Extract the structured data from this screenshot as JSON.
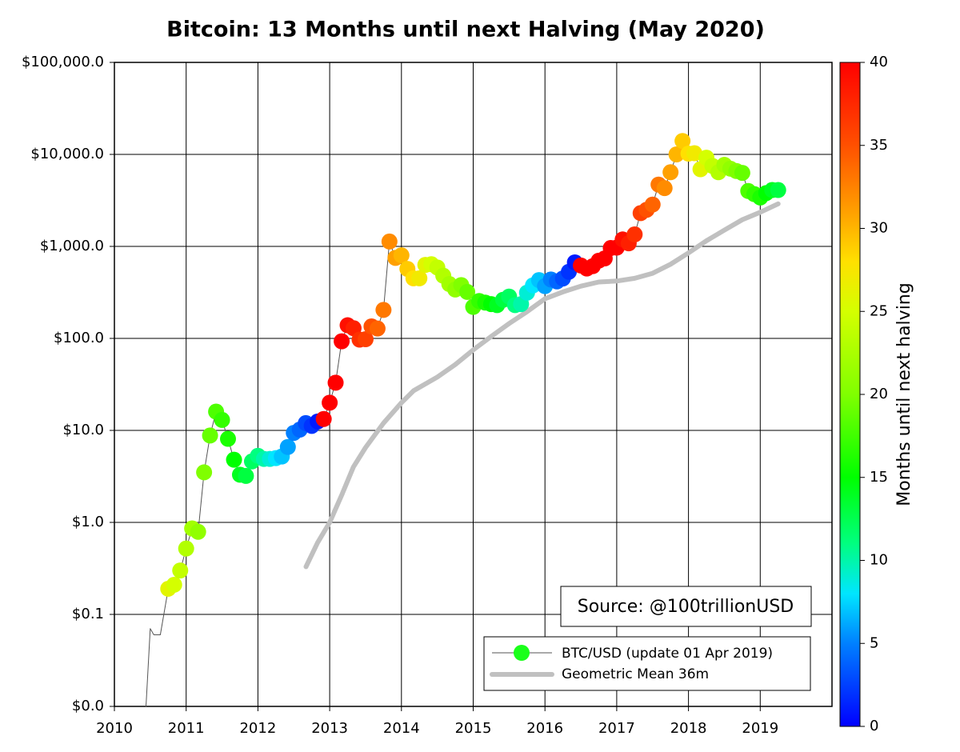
{
  "chart_data": {
    "type": "scatter",
    "title": "Bitcoin: 13 Months until next Halving (May 2020)",
    "annotation": "Source: @100trillionUSD",
    "xlim": [
      2010,
      2020
    ],
    "xticks": [
      2010,
      2011,
      2012,
      2013,
      2014,
      2015,
      2016,
      2017,
      2018,
      2019
    ],
    "ylim": [
      0.01,
      100000
    ],
    "yscale": "log",
    "yticks": [
      {
        "value": 0.01,
        "label": "$0.0"
      },
      {
        "value": 0.1,
        "label": "$0.1"
      },
      {
        "value": 1,
        "label": "$1.0"
      },
      {
        "value": 10,
        "label": "$10.0"
      },
      {
        "value": 100,
        "label": "$100.0"
      },
      {
        "value": 1000,
        "label": "$1,000.0"
      },
      {
        "value": 10000,
        "label": "$10,000.0"
      },
      {
        "value": 100000,
        "label": "$100,000.0"
      }
    ],
    "grid": true,
    "legend": "lower right",
    "colorbar": {
      "label": "Months until next halving",
      "lim": [
        0,
        40
      ],
      "ticks": [
        0,
        5,
        10,
        15,
        20,
        25,
        30,
        35,
        40
      ]
    },
    "series": [
      {
        "name": "BTC/USD (update 01 Apr 2019)",
        "color": "#1aff1a",
        "line_color": "#555555",
        "x": [
          2010.44,
          2010.5,
          2010.55,
          2010.64,
          2010.75,
          2010.833,
          2010.917,
          2011.0,
          2011.083,
          2011.167,
          2011.25,
          2011.333,
          2011.417,
          2011.5,
          2011.583,
          2011.667,
          2011.75,
          2011.833,
          2011.917,
          2012.0,
          2012.083,
          2012.167,
          2012.25,
          2012.333,
          2012.417,
          2012.5,
          2012.583,
          2012.667,
          2012.75,
          2012.833,
          2012.917,
          2013.0,
          2013.083,
          2013.167,
          2013.25,
          2013.333,
          2013.417,
          2013.5,
          2013.583,
          2013.667,
          2013.75,
          2013.833,
          2013.917,
          2014.0,
          2014.083,
          2014.167,
          2014.25,
          2014.333,
          2014.417,
          2014.5,
          2014.583,
          2014.667,
          2014.75,
          2014.833,
          2014.917,
          2015.0,
          2015.083,
          2015.167,
          2015.25,
          2015.333,
          2015.417,
          2015.5,
          2015.583,
          2015.667,
          2015.75,
          2015.833,
          2015.917,
          2016.0,
          2016.083,
          2016.167,
          2016.25,
          2016.333,
          2016.417,
          2016.5,
          2016.583,
          2016.667,
          2016.75,
          2016.833,
          2016.917,
          2017.0,
          2017.083,
          2017.167,
          2017.25,
          2017.333,
          2017.417,
          2017.5,
          2017.583,
          2017.667,
          2017.75,
          2017.833,
          2017.917,
          2018.0,
          2018.083,
          2018.167,
          2018.25,
          2018.333,
          2018.417,
          2018.5,
          2018.583,
          2018.667,
          2018.75,
          2018.833,
          2018.917,
          2019.0,
          2019.083,
          2019.167,
          2019.25
        ],
        "values": [
          0.01,
          0.07,
          0.06,
          0.06,
          0.19,
          0.21,
          0.3,
          0.52,
          0.86,
          0.79,
          3.5,
          8.8,
          16,
          13,
          8.1,
          4.8,
          3.3,
          3.2,
          4.6,
          5.3,
          4.9,
          4.9,
          5.0,
          5.2,
          6.6,
          9.4,
          10.2,
          12.0,
          11.2,
          12.5,
          13.3,
          20,
          33,
          93,
          139,
          129,
          97,
          98,
          135,
          128,
          204,
          1130,
          750,
          800,
          570,
          450,
          450,
          630,
          640,
          590,
          480,
          390,
          340,
          380,
          320,
          220,
          255,
          245,
          236,
          230,
          263,
          285,
          230,
          236,
          314,
          377,
          430,
          370,
          437,
          416,
          448,
          530,
          670,
          620,
          575,
          610,
          700,
          740,
          960,
          970,
          1190,
          1080,
          1350,
          2300,
          2500,
          2850,
          4700,
          4300,
          6400,
          10000,
          14000,
          10200,
          10300,
          6900,
          9200,
          7500,
          6400,
          7700,
          7000,
          6600,
          6300,
          4000,
          3700,
          3400,
          3800,
          4100,
          4100
        ],
        "months": [
          null,
          null,
          null,
          null,
          26,
          25,
          24,
          23,
          22,
          21,
          20,
          19,
          18,
          17,
          16,
          15,
          14,
          13,
          12,
          11,
          10,
          9,
          8,
          7,
          6,
          5,
          4,
          3,
          2,
          1,
          43,
          42,
          41,
          40,
          39,
          38,
          37,
          36,
          35,
          34,
          33,
          32,
          31,
          30,
          29,
          28,
          27,
          26,
          25,
          24,
          23,
          22,
          21,
          20,
          19,
          18,
          17,
          16,
          15,
          14,
          13,
          12,
          11,
          10,
          9,
          8,
          7,
          6,
          5,
          4,
          3,
          2,
          1,
          46,
          45,
          44,
          43,
          42,
          41,
          40,
          39,
          38,
          37,
          36,
          35,
          34,
          33,
          32,
          31,
          30,
          29,
          28,
          27,
          26,
          25,
          24,
          23,
          22,
          21,
          20,
          19,
          18,
          17,
          16,
          15,
          14,
          13
        ]
      },
      {
        "name": "Geometric Mean 36m",
        "color": "#c0c0c0",
        "x": [
          2012.67,
          2012.83,
          2013.0,
          2013.17,
          2013.33,
          2013.5,
          2013.75,
          2014.0,
          2014.17,
          2014.5,
          2014.75,
          2015.0,
          2015.25,
          2015.5,
          2015.75,
          2016.0,
          2016.25,
          2016.5,
          2016.75,
          2017.0,
          2017.25,
          2017.5,
          2017.75,
          2018.0,
          2018.25,
          2018.5,
          2018.75,
          2019.0,
          2019.25
        ],
        "values": [
          0.33,
          0.6,
          1.0,
          2.0,
          4.0,
          6.5,
          12,
          20,
          27,
          38,
          52,
          75,
          105,
          145,
          195,
          270,
          320,
          370,
          410,
          420,
          450,
          510,
          640,
          850,
          1150,
          1500,
          1950,
          2350,
          2900
        ]
      }
    ]
  }
}
